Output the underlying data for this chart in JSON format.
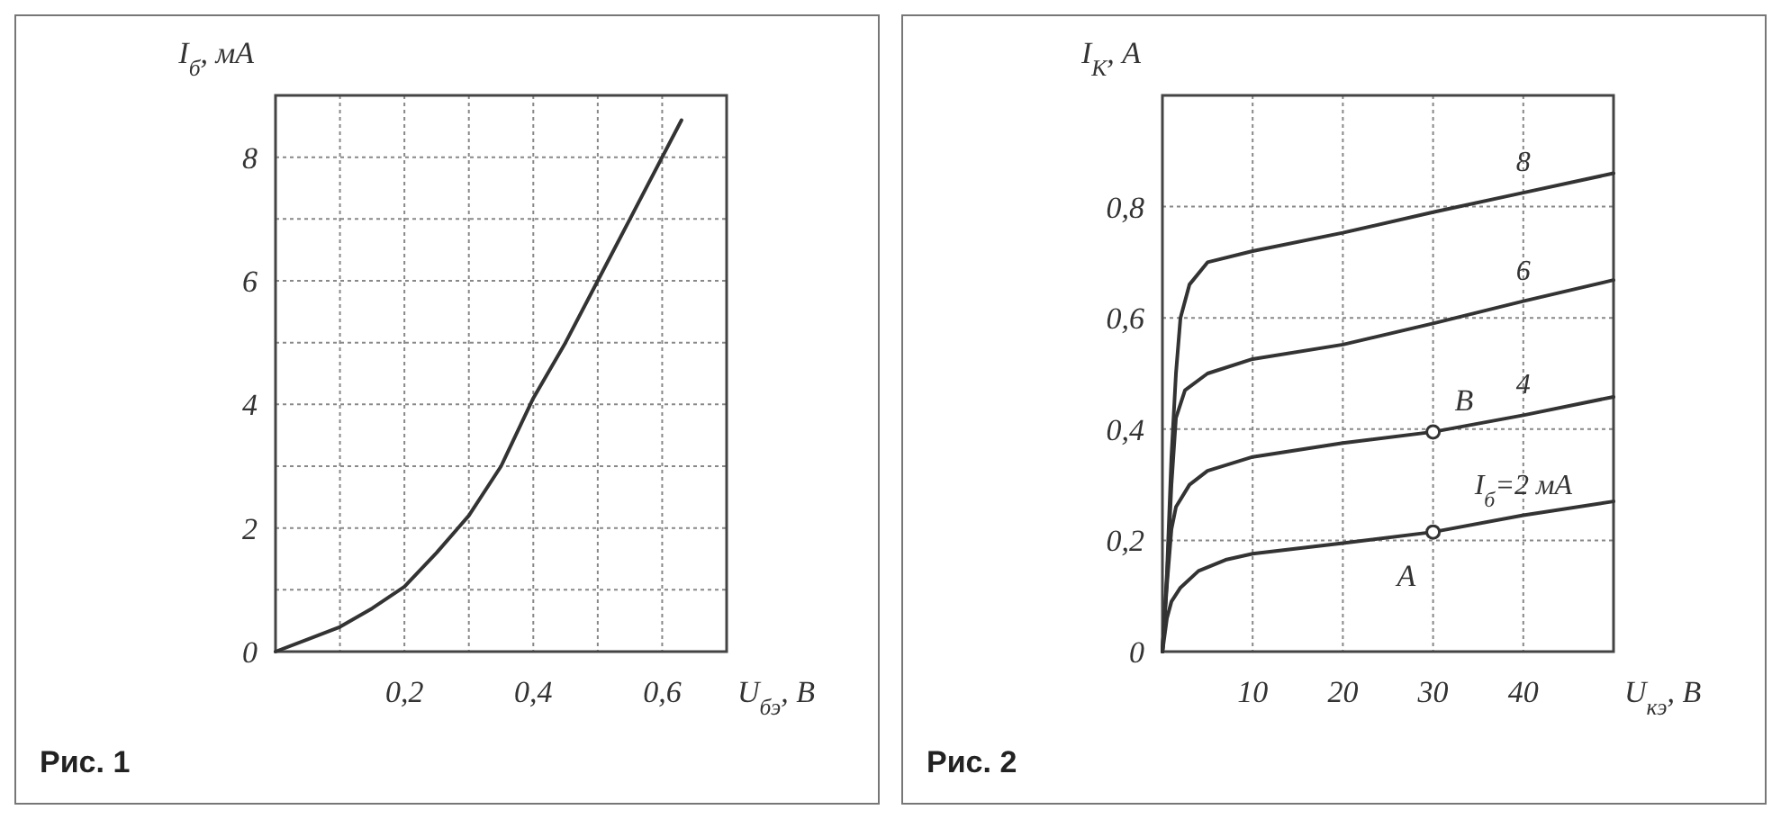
{
  "chart_data": [
    {
      "type": "line",
      "ylabel": "I$_{б}$, мА",
      "xlabel": "U$_{бэ}$, В",
      "xlim": [
        0,
        0.7
      ],
      "ylim": [
        0,
        9
      ],
      "xticks": [
        {
          "value": 0,
          "label": null
        },
        {
          "value": 0.1,
          "label": null
        },
        {
          "value": 0.2,
          "label": "0,2"
        },
        {
          "value": 0.3,
          "label": null
        },
        {
          "value": 0.4,
          "label": "0,4"
        },
        {
          "value": 0.5,
          "label": null
        },
        {
          "value": 0.6,
          "label": "0,6"
        },
        {
          "value": 0.7,
          "label": null
        }
      ],
      "yticks": [
        0,
        {
          "value": 1,
          "label": null
        },
        2,
        {
          "value": 3,
          "label": null
        },
        4,
        {
          "value": 5,
          "label": null
        },
        6,
        {
          "value": 7,
          "label": null
        },
        8,
        {
          "value": 9,
          "label": null
        }
      ],
      "grid": true,
      "series": [
        {
          "color": "#333333",
          "x": [
            0,
            0.05,
            0.1,
            0.15,
            0.2,
            0.25,
            0.3,
            0.35,
            0.4,
            0.45,
            0.5,
            0.55,
            0.6,
            0.63
          ],
          "values": [
            0,
            0.2,
            0.4,
            0.7,
            1.05,
            1.6,
            2.2,
            3.0,
            4.1,
            5.0,
            6.0,
            7.0,
            8.0,
            8.6
          ]
        }
      ],
      "annotations": [
        "Рис. 1"
      ]
    },
    {
      "type": "line",
      "ylabel": "I$_{К}$, А",
      "xlabel": "U$_{кэ}$, В",
      "xlim": [
        0,
        50
      ],
      "ylim": [
        0,
        1
      ],
      "xticks": [
        {
          "value": 0,
          "label": null
        },
        10,
        20,
        30,
        40,
        {
          "value": 50,
          "label": null
        }
      ],
      "yticks": [
        0,
        {
          "value": 0.2,
          "label": "0,2"
        },
        {
          "value": 0.4,
          "label": "0,4"
        },
        {
          "value": 0.6,
          "label": "0,6"
        },
        {
          "value": 0.8,
          "label": "0,8"
        },
        {
          "value": 1,
          "label": null
        }
      ],
      "grid": true,
      "series": [
        {
          "name": "I$_{б}$=2 мА",
          "color": "#333333",
          "x": [
            0,
            0.5,
            1,
            2,
            4,
            7,
            10,
            20,
            30,
            40,
            50
          ],
          "values": [
            0,
            0.06,
            0.09,
            0.115,
            0.145,
            0.165,
            0.176,
            0.195,
            0.215,
            0.245,
            0.27
          ]
        },
        {
          "name": "4",
          "color": "#333333",
          "x": [
            0,
            0.5,
            1,
            1.5,
            3,
            5,
            10,
            20,
            30,
            40,
            50
          ],
          "values": [
            0,
            0.12,
            0.22,
            0.26,
            0.3,
            0.325,
            0.35,
            0.375,
            0.395,
            0.425,
            0.458
          ]
        },
        {
          "name": "6",
          "color": "#333333",
          "x": [
            0,
            0.5,
            1,
            1.5,
            2.5,
            5,
            10,
            20,
            30,
            40,
            50
          ],
          "values": [
            0,
            0.13,
            0.3,
            0.42,
            0.47,
            0.5,
            0.526,
            0.552,
            0.59,
            0.63,
            0.668
          ]
        },
        {
          "name": "8",
          "color": "#333333",
          "x": [
            0,
            0.5,
            1,
            1.5,
            2,
            3,
            5,
            10,
            20,
            30,
            40,
            50
          ],
          "values": [
            0,
            0.14,
            0.35,
            0.5,
            0.6,
            0.66,
            0.7,
            0.72,
            0.753,
            0.79,
            0.825,
            0.86
          ]
        }
      ],
      "annotations": [
        {
          "text": "А",
          "x": 30,
          "y": 0.215
        },
        {
          "text": "В",
          "x": 30,
          "y": 0.395
        },
        "Рис. 2"
      ]
    }
  ]
}
